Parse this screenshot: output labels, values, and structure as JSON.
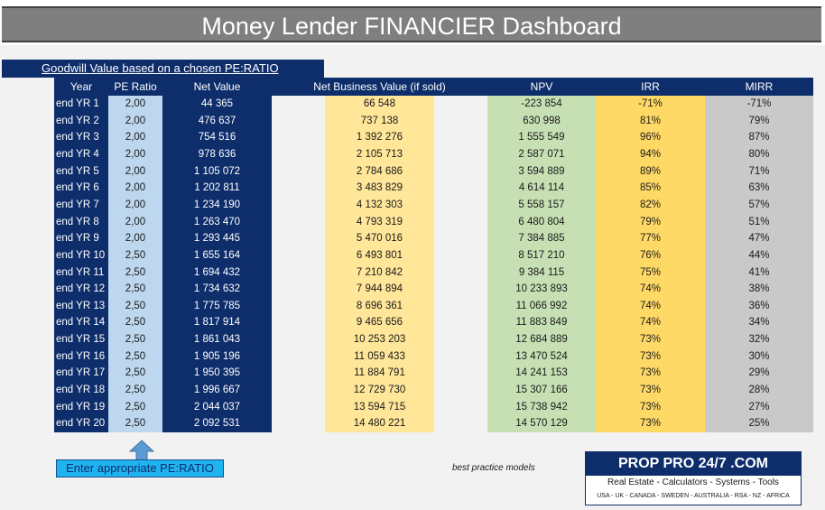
{
  "title": "Money Lender FINANCIER Dashboard",
  "goodwill_header": "Goodwill Value based on a chosen PE:RATIO",
  "columns": {
    "year": "Year",
    "pe": "PE Ratio",
    "net_value": "Net Value",
    "nbv": "Net Business Value (if sold)",
    "npv": "NPV",
    "irr": "IRR",
    "mirr": "MIRR"
  },
  "rows": [
    {
      "year": "end YR 1",
      "pe": "2,00",
      "net_value": "44 365",
      "nbv": "66 548",
      "npv": "-223 854",
      "irr": "-71%",
      "mirr": "-71%"
    },
    {
      "year": "end YR 2",
      "pe": "2,00",
      "net_value": "476 637",
      "nbv": "737 138",
      "npv": "630 998",
      "irr": "81%",
      "mirr": "79%"
    },
    {
      "year": "end YR 3",
      "pe": "2,00",
      "net_value": "754 516",
      "nbv": "1 392 276",
      "npv": "1 555 549",
      "irr": "96%",
      "mirr": "87%"
    },
    {
      "year": "end YR 4",
      "pe": "2,00",
      "net_value": "978 636",
      "nbv": "2 105 713",
      "npv": "2 587 071",
      "irr": "94%",
      "mirr": "80%"
    },
    {
      "year": "end YR 5",
      "pe": "2,00",
      "net_value": "1 105 072",
      "nbv": "2 784 686",
      "npv": "3 594 889",
      "irr": "89%",
      "mirr": "71%"
    },
    {
      "year": "end YR 6",
      "pe": "2,00",
      "net_value": "1 202 811",
      "nbv": "3 483 829",
      "npv": "4 614 114",
      "irr": "85%",
      "mirr": "63%"
    },
    {
      "year": "end YR 7",
      "pe": "2,00",
      "net_value": "1 234 190",
      "nbv": "4 132 303",
      "npv": "5 558 157",
      "irr": "82%",
      "mirr": "57%"
    },
    {
      "year": "end YR 8",
      "pe": "2,00",
      "net_value": "1 263 470",
      "nbv": "4 793 319",
      "npv": "6 480 804",
      "irr": "79%",
      "mirr": "51%"
    },
    {
      "year": "end YR 9",
      "pe": "2,00",
      "net_value": "1 293 445",
      "nbv": "5 470 016",
      "npv": "7 384 885",
      "irr": "77%",
      "mirr": "47%"
    },
    {
      "year": "end YR 10",
      "pe": "2,50",
      "net_value": "1 655 164",
      "nbv": "6 493 801",
      "npv": "8 517 210",
      "irr": "76%",
      "mirr": "44%"
    },
    {
      "year": "end YR 11",
      "pe": "2,50",
      "net_value": "1 694 432",
      "nbv": "7 210 842",
      "npv": "9 384 115",
      "irr": "75%",
      "mirr": "41%"
    },
    {
      "year": "end YR 12",
      "pe": "2,50",
      "net_value": "1 734 632",
      "nbv": "7 944 894",
      "npv": "10 233 893",
      "irr": "74%",
      "mirr": "38%"
    },
    {
      "year": "end YR 13",
      "pe": "2,50",
      "net_value": "1 775 785",
      "nbv": "8 696 361",
      "npv": "11 066 992",
      "irr": "74%",
      "mirr": "36%"
    },
    {
      "year": "end YR 14",
      "pe": "2,50",
      "net_value": "1 817 914",
      "nbv": "9 465 656",
      "npv": "11 883 849",
      "irr": "74%",
      "mirr": "34%"
    },
    {
      "year": "end YR 15",
      "pe": "2,50",
      "net_value": "1 861 043",
      "nbv": "10 253 203",
      "npv": "12 684 889",
      "irr": "73%",
      "mirr": "32%"
    },
    {
      "year": "end YR 16",
      "pe": "2,50",
      "net_value": "1 905 196",
      "nbv": "11 059 433",
      "npv": "13 470 524",
      "irr": "73%",
      "mirr": "30%"
    },
    {
      "year": "end YR 17",
      "pe": "2,50",
      "net_value": "1 950 395",
      "nbv": "11 884 791",
      "npv": "14 241 153",
      "irr": "73%",
      "mirr": "29%"
    },
    {
      "year": "end YR 18",
      "pe": "2,50",
      "net_value": "1 996 667",
      "nbv": "12 729 730",
      "npv": "15 307 166",
      "irr": "73%",
      "mirr": "28%"
    },
    {
      "year": "end YR 19",
      "pe": "2,50",
      "net_value": "2 044 037",
      "nbv": "13 594 715",
      "npv": "15 738 942",
      "irr": "73%",
      "mirr": "27%"
    },
    {
      "year": "end YR 20",
      "pe": "2,50",
      "net_value": "2 092 531",
      "nbv": "14 480 221",
      "npv": "14 570 129",
      "irr": "73%",
      "mirr": "25%"
    }
  ],
  "enter_label": "Enter appropriate PE:RATIO",
  "best_practice": "best practice models",
  "logo": {
    "title": "PROP PRO 24/7 .COM",
    "tagline": "Real Estate - Calculators - Systems - Tools",
    "countries": "USA - UK - CANADA - SWEDEN - AUSTRALIA - RSA - NZ - AFRICA"
  },
  "colors": {
    "navy": "#0d2d6b",
    "light_blue": "#bdd7ee",
    "pale_yellow": "#ffe699",
    "pale_green": "#c6e0b4",
    "yellow": "#ffd966",
    "grey": "#c9c9c9"
  },
  "icons": [
    "up-arrow-icon"
  ]
}
